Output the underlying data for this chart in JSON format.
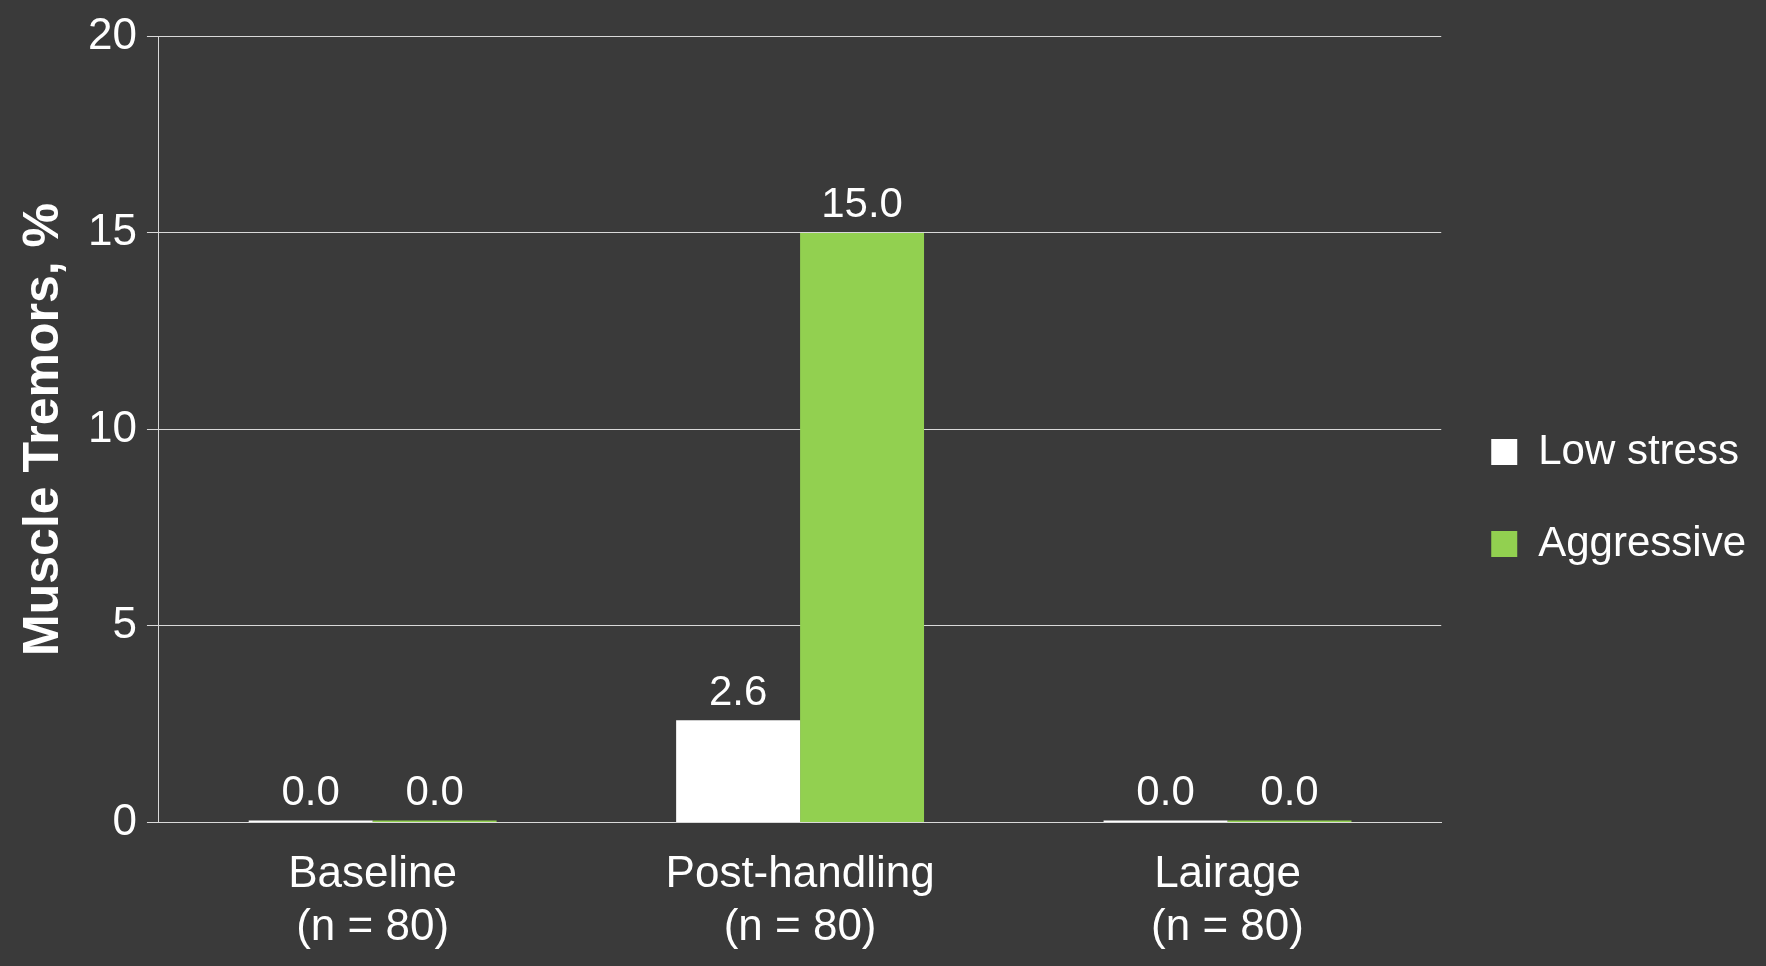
{
  "chart_data": {
    "type": "bar",
    "ylabel": "Muscle Tremors, %",
    "categories": [
      "Baseline\n(n = 80)",
      "Post-handling\n(n = 80)",
      "Lairage\n(n = 80)"
    ],
    "series": [
      {
        "name": "Low stress",
        "color": "#ffffff",
        "values": [
          0,
          2.6,
          0
        ],
        "value_labels": [
          "0.0",
          "2.6",
          "0.0"
        ]
      },
      {
        "name": "Aggressive",
        "color": "#92d050",
        "values": [
          0,
          15,
          0
        ],
        "value_labels": [
          "0.0",
          "15.0",
          "0.0"
        ]
      }
    ],
    "ylim": [
      0,
      20
    ],
    "yticks": [
      0,
      5,
      10,
      15,
      20
    ],
    "grid": "y",
    "legend": "right"
  }
}
